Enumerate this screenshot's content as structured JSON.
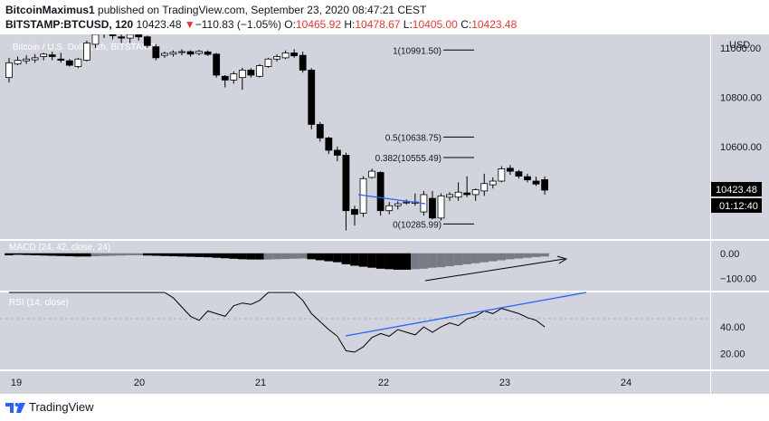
{
  "header": {
    "line1_author": "BitcoinMaximus1",
    "line1_rest": " published on TradingView.com, September 23, 2020 08:47:21 CEST",
    "symbol": "BITSTAMP:BTCUSD, 120",
    "last": "10423.48",
    "change_arrow": "▼",
    "change": "−110.83 (−1.05%)",
    "o_label": "O:",
    "o": "10465.92",
    "h_label": "H:",
    "h": "10478.67",
    "l_label": "L:",
    "l": "10405.00",
    "c_label": "C:",
    "c": "10423.48"
  },
  "main": {
    "watermark": "Bitcoin / U.S. Dollar, 2h, BITSTAMP",
    "axis_unit": "USD",
    "price_label": "10423.48",
    "countdown": "01:12:40"
  },
  "macd": {
    "label": "MACD (24, 42, close, 24)"
  },
  "rsi": {
    "label": "RSI (14, close)"
  },
  "footer": {
    "brand": "TradingView"
  },
  "colors": {
    "pane_bg": "#d1d4dc",
    "bull_body": "#ffffff",
    "bear_body": "#000000",
    "trendline": "#2962ff",
    "hist_dark": "#000000",
    "hist_light": "#787b86"
  },
  "chart_data": [
    {
      "type": "candlestick",
      "title": "Bitcoin / U.S. Dollar, 2h, BITSTAMP",
      "ylabel": "USD",
      "ylim": [
        10225,
        11055
      ],
      "yticks": [
        "11000.00",
        "10800.00",
        "10600.00"
      ],
      "yticks_values": [
        11000,
        10800,
        10600
      ],
      "xticks": [
        "19",
        "20",
        "21",
        "22",
        "23",
        "24"
      ],
      "fibonacci": [
        {
          "label": "1(10991.50)",
          "value": 10991.5
        },
        {
          "label": "0.5(10638.75)",
          "value": 10638.75
        },
        {
          "label": "0.382(10555.49)",
          "value": 10555.49
        },
        {
          "label": "0(10285.99)",
          "value": 10285.99
        }
      ],
      "last_price": 10423.48,
      "candles": [
        {
          "o": 10880,
          "h": 10960,
          "l": 10860,
          "c": 10940
        },
        {
          "o": 10935,
          "h": 10965,
          "l": 10930,
          "c": 10950
        },
        {
          "o": 10948,
          "h": 10970,
          "l": 10935,
          "c": 10955
        },
        {
          "o": 10952,
          "h": 10975,
          "l": 10940,
          "c": 10960
        },
        {
          "o": 10965,
          "h": 10980,
          "l": 10950,
          "c": 10975
        },
        {
          "o": 10972,
          "h": 10985,
          "l": 10950,
          "c": 10965
        },
        {
          "o": 10955,
          "h": 10980,
          "l": 10940,
          "c": 10950
        },
        {
          "o": 10948,
          "h": 10955,
          "l": 10925,
          "c": 10930
        },
        {
          "o": 10925,
          "h": 10960,
          "l": 10918,
          "c": 10955
        },
        {
          "o": 10950,
          "h": 11030,
          "l": 10945,
          "c": 11020
        },
        {
          "o": 11015,
          "h": 11060,
          "l": 11000,
          "c": 11055
        },
        {
          "o": 11060,
          "h": 11070,
          "l": 11040,
          "c": 11060
        },
        {
          "o": 11060,
          "h": 11070,
          "l": 11035,
          "c": 11050
        },
        {
          "o": 11045,
          "h": 11055,
          "l": 11020,
          "c": 11040
        },
        {
          "o": 11040,
          "h": 11060,
          "l": 11020,
          "c": 11055
        },
        {
          "o": 11055,
          "h": 11060,
          "l": 11030,
          "c": 11045
        },
        {
          "o": 11045,
          "h": 11050,
          "l": 11000,
          "c": 11010
        },
        {
          "o": 11005,
          "h": 11015,
          "l": 10950,
          "c": 10960
        },
        {
          "o": 10970,
          "h": 10985,
          "l": 10960,
          "c": 10978
        },
        {
          "o": 10975,
          "h": 10990,
          "l": 10965,
          "c": 10982
        },
        {
          "o": 10982,
          "h": 10995,
          "l": 10970,
          "c": 10985
        },
        {
          "o": 10985,
          "h": 10990,
          "l": 10965,
          "c": 10975
        },
        {
          "o": 10978,
          "h": 10992,
          "l": 10970,
          "c": 10986
        },
        {
          "o": 10984,
          "h": 10990,
          "l": 10968,
          "c": 10974
        },
        {
          "o": 10975,
          "h": 10980,
          "l": 10880,
          "c": 10890
        },
        {
          "o": 10885,
          "h": 10890,
          "l": 10840,
          "c": 10870
        },
        {
          "o": 10870,
          "h": 10905,
          "l": 10855,
          "c": 10895
        },
        {
          "o": 10880,
          "h": 10920,
          "l": 10830,
          "c": 10910
        },
        {
          "o": 10910,
          "h": 10918,
          "l": 10880,
          "c": 10890
        },
        {
          "o": 10885,
          "h": 10935,
          "l": 10880,
          "c": 10928
        },
        {
          "o": 10925,
          "h": 10960,
          "l": 10920,
          "c": 10955
        },
        {
          "o": 10955,
          "h": 10975,
          "l": 10945,
          "c": 10965
        },
        {
          "o": 10960,
          "h": 10990,
          "l": 10955,
          "c": 10980
        },
        {
          "o": 10980,
          "h": 10995,
          "l": 10960,
          "c": 10968
        },
        {
          "o": 10970,
          "h": 10985,
          "l": 10900,
          "c": 10910
        },
        {
          "o": 10910,
          "h": 10918,
          "l": 10670,
          "c": 10690
        },
        {
          "o": 10690,
          "h": 10700,
          "l": 10620,
          "c": 10635
        },
        {
          "o": 10635,
          "h": 10640,
          "l": 10570,
          "c": 10585
        },
        {
          "o": 10585,
          "h": 10600,
          "l": 10540,
          "c": 10565
        },
        {
          "o": 10565,
          "h": 10575,
          "l": 10260,
          "c": 10340
        },
        {
          "o": 10345,
          "h": 10360,
          "l": 10280,
          "c": 10325
        },
        {
          "o": 10330,
          "h": 10480,
          "l": 10315,
          "c": 10470
        },
        {
          "o": 10475,
          "h": 10510,
          "l": 10470,
          "c": 10500
        },
        {
          "o": 10495,
          "h": 10500,
          "l": 10320,
          "c": 10340
        },
        {
          "o": 10340,
          "h": 10375,
          "l": 10325,
          "c": 10360
        },
        {
          "o": 10360,
          "h": 10378,
          "l": 10345,
          "c": 10368
        },
        {
          "o": 10372,
          "h": 10385,
          "l": 10365,
          "c": 10375
        },
        {
          "o": 10370,
          "h": 10410,
          "l": 10360,
          "c": 10375
        },
        {
          "o": 10335,
          "h": 10420,
          "l": 10320,
          "c": 10405
        },
        {
          "o": 10390,
          "h": 10420,
          "l": 10305,
          "c": 10310
        },
        {
          "o": 10310,
          "h": 10410,
          "l": 10300,
          "c": 10400
        },
        {
          "o": 10395,
          "h": 10415,
          "l": 10380,
          "c": 10405
        },
        {
          "o": 10395,
          "h": 10455,
          "l": 10380,
          "c": 10415
        },
        {
          "o": 10412,
          "h": 10480,
          "l": 10395,
          "c": 10405
        },
        {
          "o": 10405,
          "h": 10430,
          "l": 10380,
          "c": 10425
        },
        {
          "o": 10420,
          "h": 10490,
          "l": 10400,
          "c": 10450
        },
        {
          "o": 10445,
          "h": 10475,
          "l": 10430,
          "c": 10460
        },
        {
          "o": 10460,
          "h": 10520,
          "l": 10455,
          "c": 10510
        },
        {
          "o": 10512,
          "h": 10525,
          "l": 10485,
          "c": 10500
        },
        {
          "o": 10498,
          "h": 10505,
          "l": 10470,
          "c": 10480
        },
        {
          "o": 10478,
          "h": 10490,
          "l": 10455,
          "c": 10465
        },
        {
          "o": 10460,
          "h": 10478,
          "l": 10440,
          "c": 10448
        },
        {
          "o": 10465.92,
          "h": 10478.67,
          "l": 10405,
          "c": 10423.48
        }
      ]
    },
    {
      "type": "bar",
      "title": "MACD (24, 42, close, 24)",
      "yticks": [
        "0.00",
        "−100.00"
      ],
      "yticks_values": [
        0,
        -100
      ],
      "ylim": [
        -150,
        50
      ],
      "values": [
        -8,
        -6,
        -7,
        -8,
        -9,
        -10,
        -11,
        -12,
        -13,
        -13,
        -12,
        -11,
        -10,
        -9,
        -8,
        -8,
        -9,
        -10,
        -11,
        -12,
        -13,
        -14,
        -15,
        -16,
        -18,
        -20,
        -22,
        -24,
        -25,
        -25,
        -25,
        -24,
        -23,
        -22,
        -21,
        -24,
        -28,
        -32,
        -36,
        -44,
        -50,
        -54,
        -58,
        -62,
        -64,
        -66,
        -66,
        -64,
        -62,
        -58,
        -56,
        -52,
        -48,
        -44,
        -40,
        -36,
        -32,
        -28,
        -24,
        -21,
        -18,
        -15,
        -13
      ],
      "colors": [
        "#000000",
        "#000000",
        "#000000",
        "#000000",
        "#000000",
        "#000000",
        "#000000",
        "#000000",
        "#000000",
        "#000000",
        "#787b86",
        "#787b86",
        "#787b86",
        "#787b86",
        "#787b86",
        "#787b86",
        "#000000",
        "#000000",
        "#000000",
        "#000000",
        "#000000",
        "#000000",
        "#000000",
        "#000000",
        "#000000",
        "#000000",
        "#000000",
        "#000000",
        "#000000",
        "#000000",
        "#787b86",
        "#787b86",
        "#787b86",
        "#787b86",
        "#787b86",
        "#000000",
        "#000000",
        "#000000",
        "#000000",
        "#000000",
        "#000000",
        "#000000",
        "#000000",
        "#000000",
        "#000000",
        "#000000",
        "#000000",
        "#787b86",
        "#787b86",
        "#787b86",
        "#787b86",
        "#787b86",
        "#787b86",
        "#787b86",
        "#787b86",
        "#787b86",
        "#787b86",
        "#787b86",
        "#787b86",
        "#787b86",
        "#787b86",
        "#787b86",
        "#787b86"
      ]
    },
    {
      "type": "line",
      "title": "RSI (14, close)",
      "yticks": [
        "40.00",
        "20.00"
      ],
      "yticks_values": [
        40,
        20
      ],
      "ylim": [
        8,
        66
      ],
      "values": [
        66,
        66,
        66,
        66,
        66,
        66,
        66,
        66,
        66,
        66,
        66,
        66,
        66,
        66,
        66,
        66,
        66,
        66,
        66,
        62,
        55,
        48,
        45,
        52,
        50,
        48,
        56,
        58,
        57,
        60,
        66,
        66,
        66,
        66,
        60,
        50,
        44,
        38,
        33,
        22,
        21,
        25,
        32,
        35,
        33,
        38,
        36,
        34,
        40,
        36,
        40,
        43,
        41,
        46,
        48,
        52,
        50,
        54,
        52,
        50,
        47,
        45,
        40
      ]
    }
  ]
}
